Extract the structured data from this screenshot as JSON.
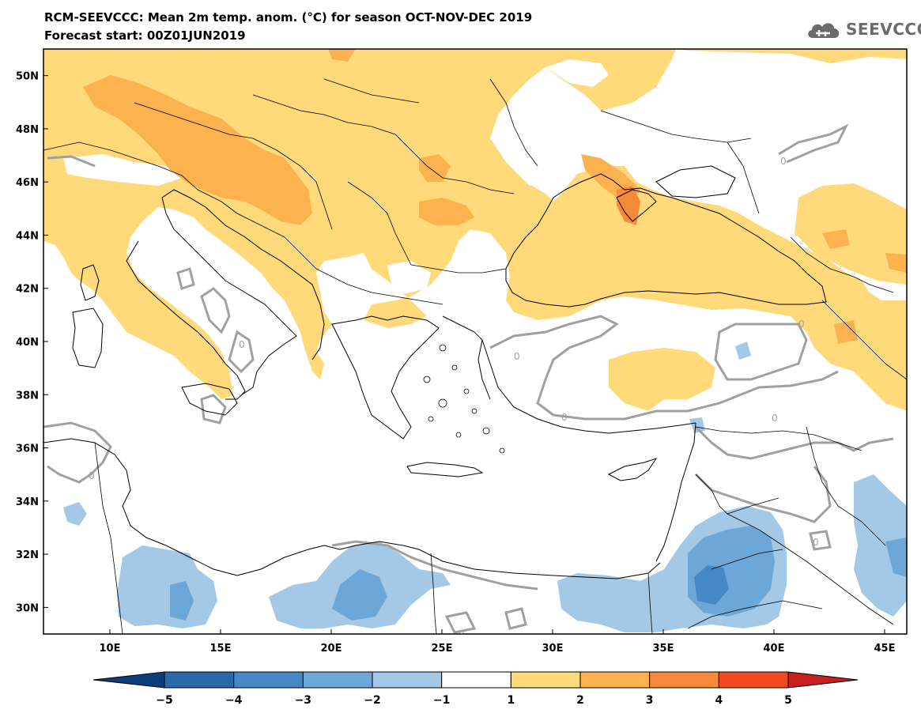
{
  "header": {
    "title": "RCM-SEEVCCC: Mean 2m temp. anom. (°C) for season OCT-NOV-DEC 2019",
    "subtitle": "Forecast start: 00Z01JUN2019",
    "logo_text": "SEEVCCC"
  },
  "map": {
    "region": "Southeastern Europe and Eastern Mediterranean",
    "lon_range": [
      7,
      46
    ],
    "lat_range": [
      29,
      51
    ],
    "lat_labels": [
      "50N",
      "48N",
      "46N",
      "44N",
      "42N",
      "40N",
      "38N",
      "36N",
      "34N",
      "32N",
      "30N"
    ],
    "lon_labels": [
      "10E",
      "15E",
      "20E",
      "25E",
      "30E",
      "35E",
      "40E",
      "45E"
    ],
    "contour_label": "0",
    "ocean_color": "#ffffff",
    "border_color": "#000000"
  },
  "colorbar": {
    "ticks": [
      "−5",
      "−4",
      "−3",
      "−2",
      "−1",
      "1",
      "2",
      "3",
      "4",
      "5"
    ],
    "colors": [
      "#0a3d7a",
      "#2a68a8",
      "#4688c6",
      "#6ca7d8",
      "#a3c9e6",
      "#ffffff",
      "#ffd97a",
      "#fcb24e",
      "#f7893a",
      "#f04a25",
      "#c81e1e"
    ]
  }
}
